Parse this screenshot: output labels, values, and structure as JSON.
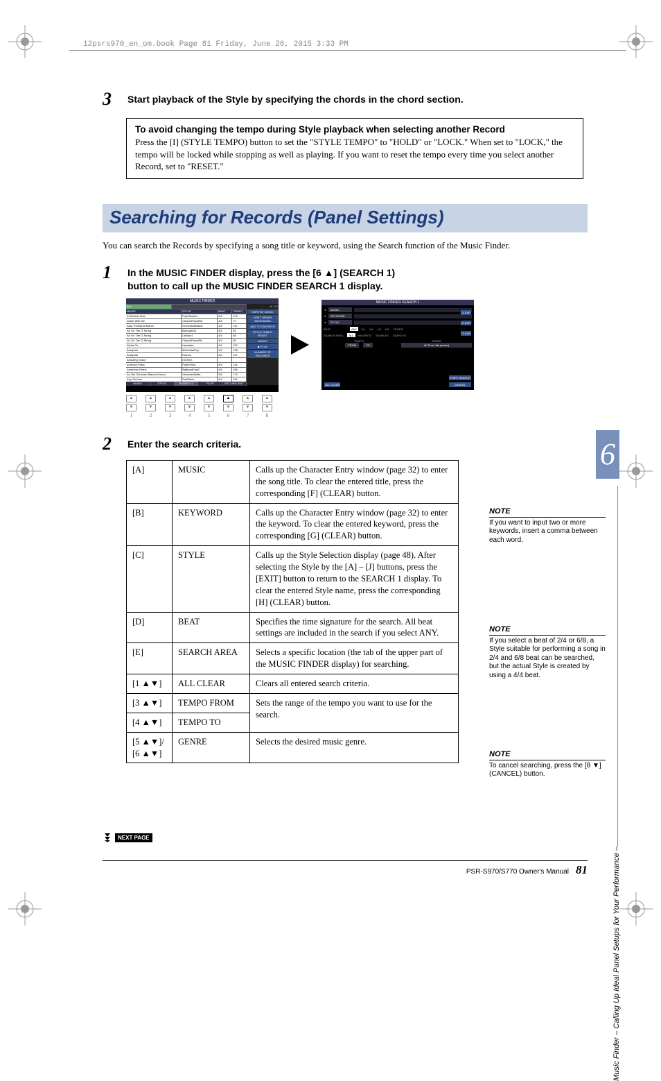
{
  "header_line": "12psrs970_en_om.book  Page 81  Friday, June 26, 2015  3:33 PM",
  "step3": {
    "num": "3",
    "text": "Start playback of the Style by specifying the chords in the chord section."
  },
  "tempo_box": {
    "title": "To avoid changing the tempo during Style playback when selecting another Record",
    "body": "Press the [I] (STYLE TEMPO) button to set the \"STYLE TEMPO\" to \"HOLD\" or \"LOCK.\" When set to \"LOCK,\" the tempo will be locked while stopping as well as playing. If you want to reset the tempo every time you select another Record, set to \"RESET.\""
  },
  "section_title": "Searching for Records (Panel Settings)",
  "section_intro": "You can search the Records by specifying a song title or keyword, using the Search function of the Music Finder.",
  "step1": {
    "num": "1",
    "text": "In the MUSIC FINDER display, press the [6 ▲] (SEARCH 1) button to call up the MUSIC FINDER SEARCH 1 display."
  },
  "display1": {
    "title": "MUSIC FINDER",
    "tab": "ALL",
    "headers": [
      "MUSIC",
      "STYLE",
      "BEAT",
      "TEMPO"
    ],
    "rows": [
      [
        "A Musical Joke",
        "PopClassics",
        "4/4",
        "124"
      ],
      [
        "Abide With Me",
        "ClassicPianoBld",
        "4/4",
        "72"
      ],
      [
        "Aida Triumphal March",
        "OrchestralMarch",
        "4/4",
        "112"
      ],
      [
        "Air On The G String",
        "BaroqueAir",
        "4/4",
        "69"
      ],
      [
        "Air On The G String",
        "Chillout1",
        "4/4",
        "68"
      ],
      [
        "Air On The G String",
        "ClassicPianoBld",
        "4/4",
        "68"
      ],
      [
        "Aloha Oe",
        "Hawaiian",
        "4/4",
        "102"
      ],
      [
        "Amapola",
        "60sGuitarPop",
        "4/4",
        "138"
      ],
      [
        "Amapola",
        "Rumba",
        "4/4",
        "112"
      ],
      [
        "Amazing Grace",
        "(SONG)",
        "",
        ""
      ],
      [
        "Amboss Polka",
        "PartyPolka",
        "4/4",
        "116"
      ],
      [
        "American Patrol",
        "BigBandFast2",
        "4/4",
        "186"
      ],
      [
        "An Der Schonen Blauen Donau",
        "VienneseWaltz",
        "3/4",
        "174"
      ],
      [
        "Any Old Iron",
        "PubPiano",
        "4/4",
        "116"
      ]
    ],
    "side_right": [
      "SORT BY MUSIC",
      "SORT ORDER ASCENDING",
      "ADD TO FAVORITE",
      "STYLE TEMPO RESET",
      "AUDIO",
      "▶ PLAY",
      "NUMBER OF RECORDS"
    ],
    "bottom": [
      "MUSIC",
      "STYLE",
      "SEARCH 1",
      "",
      "FILES",
      "RECORD EDIT"
    ],
    "count": "46  150"
  },
  "display2": {
    "title": "MUSIC FINDER SEARCH 1",
    "fields": [
      "MUSIC",
      "KEYWORD",
      "STYLE"
    ],
    "beat_label": "BEAT",
    "beat_opts": [
      "ANY",
      "2/4",
      "3/4",
      "4/4",
      "6/8",
      "OTHER"
    ],
    "area_label": "SEARCH AREA",
    "area_opts": [
      "ALL",
      "FAVORITE",
      "SEARCH1",
      "SEARCH2"
    ],
    "tempo_label": "TEMPO",
    "tempo_from": "FROM",
    "tempo_to": "TO",
    "genre_label": "GENRE",
    "genre_val": "All Time Hits (select)",
    "clear": "CLEAR",
    "allclear": "ALL CLEAR",
    "start": "START SEARCH",
    "cancel": "CANCEL"
  },
  "buttons_row": {
    "cols": [
      "1",
      "2",
      "3",
      "4",
      "5",
      "6",
      "7",
      "8"
    ],
    "active_index": 5
  },
  "step2": {
    "num": "2",
    "text": "Enter the search criteria."
  },
  "criteria_rows": [
    {
      "key": "[A]",
      "name": "MUSIC",
      "desc": "Calls up the Character Entry window (page 32) to enter the song title. To clear the entered title, press the corresponding [F] (CLEAR) button.",
      "rowspan": 1
    },
    {
      "key": "[B]",
      "name": "KEYWORD",
      "desc": "Calls up the Character Entry window (page 32) to enter the keyword. To clear the entered keyword, press the corresponding [G] (CLEAR) button.",
      "rowspan": 1
    },
    {
      "key": "[C]",
      "name": "STYLE",
      "desc": "Calls up the Style Selection display (page 48). After selecting the Style by the [A] – [J] buttons, press the [EXIT] button to return to the SEARCH 1 display. To clear the entered Style name, press the corresponding [H] (CLEAR) button.",
      "rowspan": 1
    },
    {
      "key": "[D]",
      "name": "BEAT",
      "desc": "Specifies the time signature for the search. All beat settings are included in the search if you select ANY.",
      "rowspan": 1
    },
    {
      "key": "[E]",
      "name": "SEARCH AREA",
      "desc": "Selects a specific location (the tab of the upper part of the MUSIC FINDER display) for searching.",
      "rowspan": 1
    },
    {
      "key": "[1 ▲▼]",
      "name": "ALL CLEAR",
      "desc": "Clears all entered search criteria.",
      "rowspan": 1
    },
    {
      "key": "[3 ▲▼]",
      "name": "TEMPO FROM",
      "desc": "Sets the range of the tempo you want to use for the search.",
      "rowspan": 2
    },
    {
      "key": "[4 ▲▼]",
      "name": "TEMPO TO",
      "desc": "",
      "rowspan": 0
    },
    {
      "key": "[5 ▲▼]/\n[6 ▲▼]",
      "name": "GENRE",
      "desc": "Selects the desired music genre.",
      "rowspan": 1
    }
  ],
  "side_notes": {
    "n1": {
      "title": "NOTE",
      "body": "If you want to input two or more keywords, insert a comma between each word."
    },
    "n2": {
      "title": "NOTE",
      "body": "If you select a beat of 2/4 or 6/8, a Style suitable for performing a song in 2/4 and 6/8 beat can be searched, but the actual Style is created by using a 4/4 beat."
    },
    "n3": {
      "title": "NOTE",
      "body": "To cancel searching, press the [8 ▼] (CANCEL) button."
    }
  },
  "next_page": "NEXT PAGE",
  "footer_text": "PSR-S970/S770 Owner's Manual",
  "footer_page": "81",
  "side_tab": "6",
  "vertical_label": "Music Finder – Calling Up Ideal Panel Setups for Your Performance –",
  "colors": {
    "banner_bg": "#c8d3e6",
    "banner_text": "#1d3d7a",
    "tab_bg": "#7991ba"
  }
}
